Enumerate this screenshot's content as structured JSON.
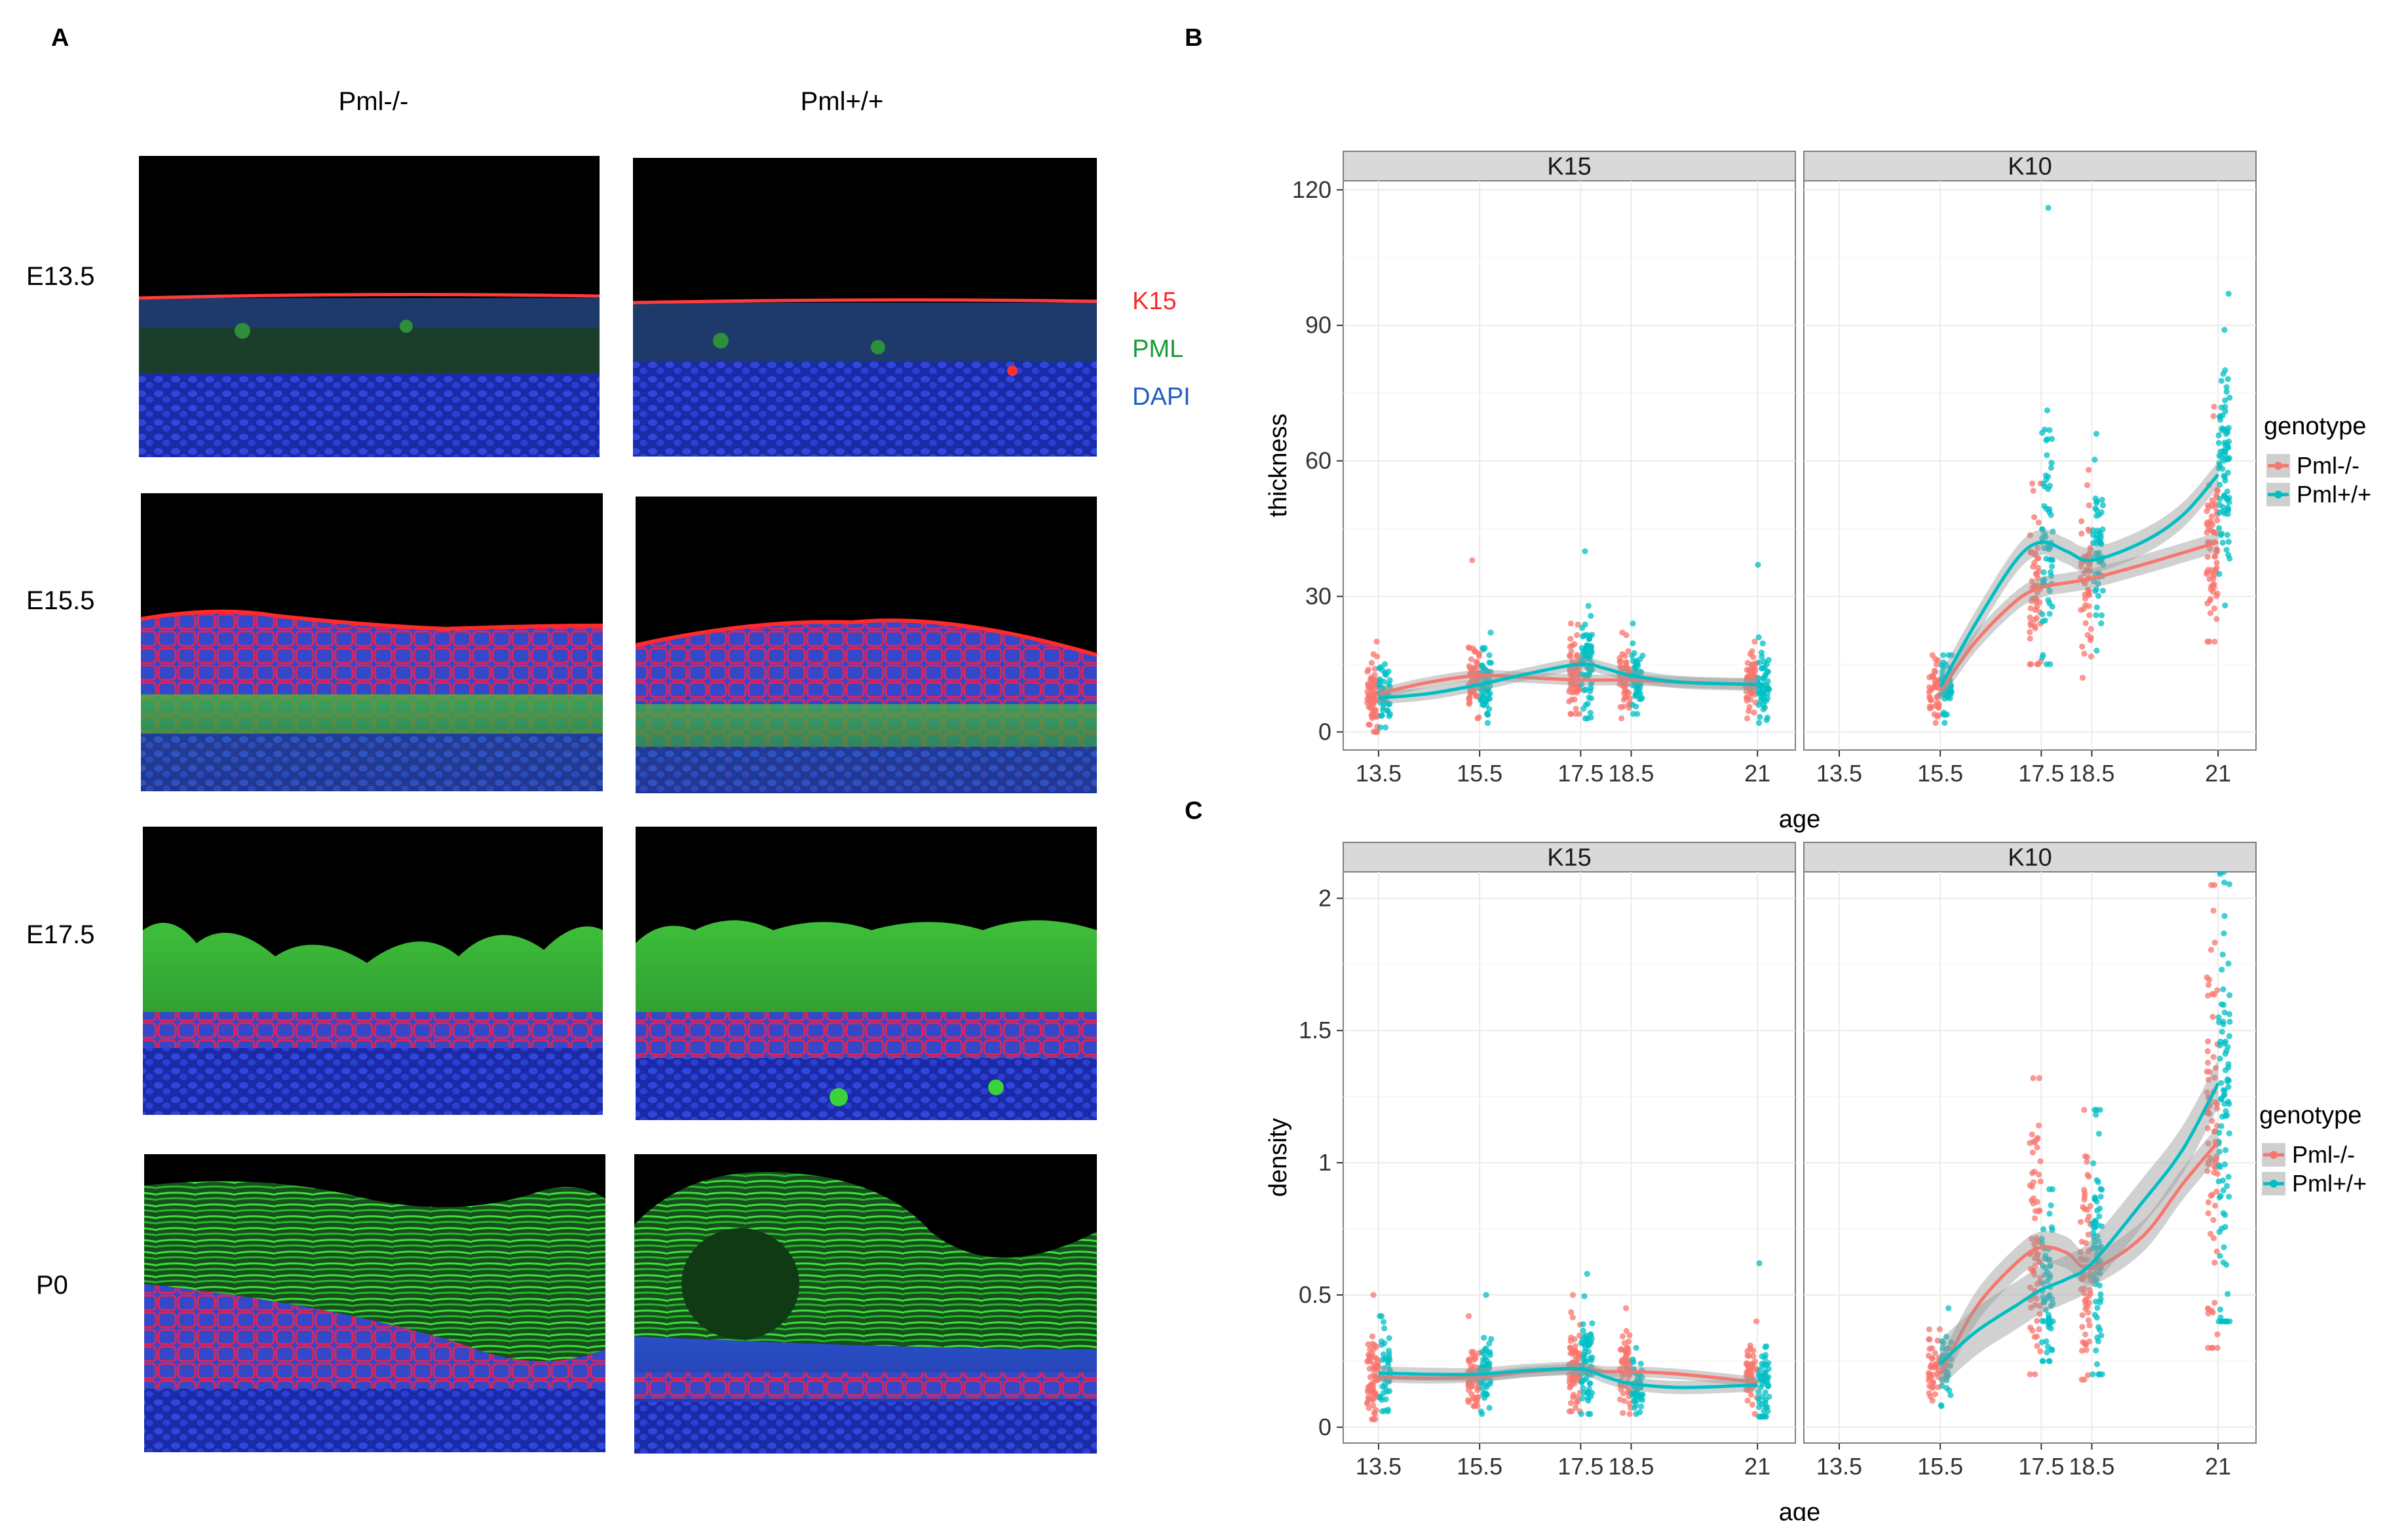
{
  "figure": {
    "panel_labels": {
      "a": "A",
      "b": "B",
      "c": "C"
    },
    "panel_a": {
      "columns": [
        "Pml-/-",
        "Pml+/+"
      ],
      "rows": [
        "E13.5",
        "E15.5",
        "E17.5",
        "P0"
      ],
      "stains": [
        {
          "label": "K15",
          "color": "#ff2a2a"
        },
        {
          "label": "PML",
          "color": "#1a9a3a"
        },
        {
          "label": "DAPI",
          "color": "#1f5fc0"
        }
      ]
    },
    "colors": {
      "pml_ko": "#f8766d",
      "pml_wt": "#00bfc4",
      "ribbon": "#999999"
    }
  },
  "chart_data": [
    {
      "type": "scatter",
      "id": "B",
      "facets": [
        "K15",
        "K10"
      ],
      "title": "",
      "xlabel": "age",
      "ylabel": "thickness",
      "x_ticks": [
        "13.5",
        "15.5",
        "17.5",
        "18.5",
        "21"
      ],
      "xlim": [
        12.8,
        21.75
      ],
      "ylim": [
        -4,
        122
      ],
      "y_ticks": [
        0,
        30,
        60,
        90,
        120
      ],
      "legend": {
        "title": "genotype",
        "entries": [
          "Pml-/-",
          "Pml+/+"
        ],
        "position": "right"
      },
      "series": [
        {
          "name": "Pml-/-",
          "color": "#f8766d",
          "groups": {
            "K15": [
              {
                "x": 13.5,
                "n": 70,
                "mean": 9,
                "sd": 3.5,
                "min": 0,
                "max": 20
              },
              {
                "x": 15.5,
                "n": 65,
                "mean": 12,
                "sd": 3.5,
                "min": 3,
                "max": 38
              },
              {
                "x": 17.5,
                "n": 70,
                "mean": 12,
                "sd": 4,
                "min": 4,
                "max": 24
              },
              {
                "x": 18.5,
                "n": 55,
                "mean": 12,
                "sd": 3.5,
                "min": 3,
                "max": 22
              },
              {
                "x": 21,
                "n": 60,
                "mean": 11,
                "sd": 3,
                "min": 3,
                "max": 20
              }
            ],
            "K10": [
              {
                "x": 15.5,
                "n": 45,
                "mean": 9,
                "sd": 3,
                "min": 2,
                "max": 17
              },
              {
                "x": 17.5,
                "n": 55,
                "mean": 32,
                "sd": 9,
                "min": 15,
                "max": 55
              },
              {
                "x": 18.5,
                "n": 55,
                "mean": 34,
                "sd": 9,
                "min": 12,
                "max": 58
              },
              {
                "x": 21,
                "n": 70,
                "mean": 40,
                "sd": 11,
                "min": 20,
                "max": 72
              }
            ]
          },
          "smooth": {
            "K15": [
              [
                13.5,
                8.5
              ],
              [
                14.5,
                11
              ],
              [
                15.5,
                12.5
              ],
              [
                16.5,
                12
              ],
              [
                17.5,
                11.5
              ],
              [
                18.5,
                11.5
              ],
              [
                19.5,
                11
              ],
              [
                21,
                10.5
              ]
            ],
            "K10": [
              [
                15.5,
                9
              ],
              [
                16.2,
                20
              ],
              [
                17,
                29
              ],
              [
                17.5,
                32
              ],
              [
                18,
                33
              ],
              [
                18.5,
                34
              ],
              [
                19.5,
                37
              ],
              [
                21,
                42
              ]
            ]
          },
          "ribbon_halfwidth": {
            "K15": 1.2,
            "K10": 2.2
          }
        },
        {
          "name": "Pml+/+",
          "color": "#00bfc4",
          "groups": {
            "K15": [
              {
                "x": 13.5,
                "n": 45,
                "mean": 8,
                "sd": 3,
                "min": 1,
                "max": 15
              },
              {
                "x": 15.5,
                "n": 60,
                "mean": 11,
                "sd": 3.5,
                "min": 2,
                "max": 22
              },
              {
                "x": 17.5,
                "n": 70,
                "mean": 16,
                "sd": 6,
                "min": 3,
                "max": 40
              },
              {
                "x": 18.5,
                "n": 55,
                "mean": 12,
                "sd": 3.5,
                "min": 4,
                "max": 24
              },
              {
                "x": 21,
                "n": 55,
                "mean": 11,
                "sd": 4,
                "min": 2,
                "max": 37
              }
            ],
            "K10": [
              {
                "x": 15.5,
                "n": 40,
                "mean": 10,
                "sd": 3,
                "min": 2,
                "max": 17
              },
              {
                "x": 17.5,
                "n": 65,
                "mean": 40,
                "sd": 16,
                "min": 15,
                "max": 116
              },
              {
                "x": 18.5,
                "n": 55,
                "mean": 40,
                "sd": 8,
                "min": 18,
                "max": 66
              },
              {
                "x": 21,
                "n": 80,
                "mean": 60,
                "sd": 13,
                "min": 28,
                "max": 97
              }
            ]
          },
          "smooth": {
            "K15": [
              [
                13.5,
                7.5
              ],
              [
                14.5,
                8.5
              ],
              [
                15.5,
                10.5
              ],
              [
                16.5,
                13
              ],
              [
                17.5,
                15
              ],
              [
                18,
                14
              ],
              [
                18.5,
                12.5
              ],
              [
                19.5,
                11
              ],
              [
                21,
                10.5
              ]
            ],
            "K10": [
              [
                15.5,
                10
              ],
              [
                16.2,
                24
              ],
              [
                17,
                38
              ],
              [
                17.5,
                42
              ],
              [
                18,
                40
              ],
              [
                18.5,
                38
              ],
              [
                19.5,
                42
              ],
              [
                20.3,
                48
              ],
              [
                21,
                57
              ]
            ]
          },
          "ribbon_halfwidth": {
            "K15": 1.4,
            "K10": 2.8
          }
        }
      ]
    },
    {
      "type": "scatter",
      "id": "C",
      "facets": [
        "K15",
        "K10"
      ],
      "title": "",
      "xlabel": "age",
      "ylabel": "density",
      "x_ticks": [
        "13.5",
        "15.5",
        "17.5",
        "18.5",
        "21"
      ],
      "xlim": [
        12.8,
        21.75
      ],
      "ylim": [
        -0.06,
        2.1
      ],
      "y_ticks": [
        0,
        0.5,
        1,
        1.5,
        2
      ],
      "y_tick_labels": [
        "0",
        "0.5",
        "1",
        "1.5",
        "2"
      ],
      "legend": {
        "title": "genotype",
        "entries": [
          "Pml-/-",
          "Pml+/+"
        ],
        "position": "right"
      },
      "series": [
        {
          "name": "Pml-/-",
          "color": "#f8766d",
          "groups": {
            "K15": [
              {
                "x": 13.5,
                "n": 70,
                "mean": 0.19,
                "sd": 0.08,
                "min": 0.03,
                "max": 0.5
              },
              {
                "x": 15.5,
                "n": 60,
                "mean": 0.19,
                "sd": 0.06,
                "min": 0.08,
                "max": 0.42
              },
              {
                "x": 17.5,
                "n": 70,
                "mean": 0.22,
                "sd": 0.08,
                "min": 0.06,
                "max": 0.5
              },
              {
                "x": 18.5,
                "n": 55,
                "mean": 0.22,
                "sd": 0.08,
                "min": 0.05,
                "max": 0.45
              },
              {
                "x": 21,
                "n": 55,
                "mean": 0.18,
                "sd": 0.06,
                "min": 0.05,
                "max": 0.4
              }
            ],
            "K10": [
              {
                "x": 15.5,
                "n": 40,
                "mean": 0.2,
                "sd": 0.07,
                "min": 0.1,
                "max": 0.37
              },
              {
                "x": 17.5,
                "n": 70,
                "mean": 0.7,
                "sd": 0.25,
                "min": 0.2,
                "max": 1.32
              },
              {
                "x": 18.5,
                "n": 65,
                "mean": 0.6,
                "sd": 0.25,
                "min": 0.18,
                "max": 1.2
              },
              {
                "x": 21,
                "n": 80,
                "mean": 1.05,
                "sd": 0.4,
                "min": 0.3,
                "max": 2.05
              }
            ]
          },
          "smooth": {
            "K15": [
              [
                13.5,
                0.19
              ],
              [
                14.5,
                0.185
              ],
              [
                15.5,
                0.19
              ],
              [
                16.5,
                0.21
              ],
              [
                17.5,
                0.22
              ],
              [
                18,
                0.21
              ],
              [
                18.5,
                0.21
              ],
              [
                19.5,
                0.2
              ],
              [
                21,
                0.17
              ]
            ],
            "K10": [
              [
                15.5,
                0.2
              ],
              [
                16.2,
                0.45
              ],
              [
                17,
                0.62
              ],
              [
                17.5,
                0.68
              ],
              [
                18,
                0.66
              ],
              [
                18.5,
                0.6
              ],
              [
                19.5,
                0.72
              ],
              [
                20.3,
                0.92
              ],
              [
                21,
                1.08
              ]
            ]
          },
          "ribbon_halfwidth": {
            "K15": 0.02,
            "K10": 0.06
          }
        },
        {
          "name": "Pml+/+",
          "color": "#00bfc4",
          "groups": {
            "K15": [
              {
                "x": 13.5,
                "n": 45,
                "mean": 0.21,
                "sd": 0.07,
                "min": 0.06,
                "max": 0.42
              },
              {
                "x": 15.5,
                "n": 60,
                "mean": 0.2,
                "sd": 0.07,
                "min": 0.05,
                "max": 0.5
              },
              {
                "x": 17.5,
                "n": 70,
                "mean": 0.22,
                "sd": 0.1,
                "min": 0.05,
                "max": 0.58
              },
              {
                "x": 18.5,
                "n": 50,
                "mean": 0.16,
                "sd": 0.05,
                "min": 0.05,
                "max": 0.3
              },
              {
                "x": 21,
                "n": 55,
                "mean": 0.17,
                "sd": 0.08,
                "min": 0.04,
                "max": 0.62
              }
            ],
            "K10": [
              {
                "x": 15.5,
                "n": 40,
                "mean": 0.24,
                "sd": 0.08,
                "min": 0.08,
                "max": 0.45
              },
              {
                "x": 17.5,
                "n": 60,
                "mean": 0.5,
                "sd": 0.15,
                "min": 0.25,
                "max": 0.9
              },
              {
                "x": 18.5,
                "n": 70,
                "mean": 0.65,
                "sd": 0.25,
                "min": 0.2,
                "max": 1.2
              },
              {
                "x": 21,
                "n": 90,
                "mean": 1.2,
                "sd": 0.45,
                "min": 0.4,
                "max": 2.1
              }
            ]
          },
          "smooth": {
            "K15": [
              [
                13.5,
                0.205
              ],
              [
                14.5,
                0.2
              ],
              [
                15.5,
                0.2
              ],
              [
                16.5,
                0.215
              ],
              [
                17.5,
                0.22
              ],
              [
                18,
                0.19
              ],
              [
                18.5,
                0.165
              ],
              [
                19.5,
                0.15
              ],
              [
                21,
                0.16
              ]
            ],
            "K10": [
              [
                15.5,
                0.24
              ],
              [
                16.2,
                0.36
              ],
              [
                17,
                0.46
              ],
              [
                17.5,
                0.52
              ],
              [
                18,
                0.56
              ],
              [
                18.5,
                0.62
              ],
              [
                19.5,
                0.85
              ],
              [
                20.3,
                1.05
              ],
              [
                21,
                1.3
              ]
            ]
          },
          "ribbon_halfwidth": {
            "K15": 0.025,
            "K10": 0.09
          }
        }
      ]
    }
  ]
}
